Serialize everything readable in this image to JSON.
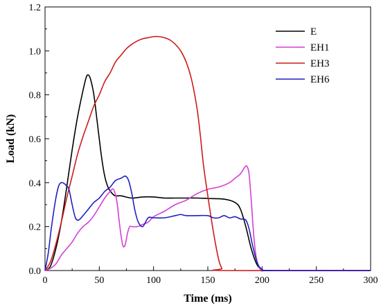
{
  "chart_data": {
    "type": "line",
    "xlabel": "Time (ms)",
    "ylabel": "Load (kN)",
    "xlim": [
      0,
      300
    ],
    "ylim": [
      0,
      1.2
    ],
    "xticks": [
      "0",
      "50",
      "100",
      "150",
      "200",
      "250",
      "300"
    ],
    "yticks": [
      "0.0",
      "0.2",
      "0.4",
      "0.6",
      "0.8",
      "1.0",
      "1.2"
    ],
    "grid": false,
    "legend_position": "top-right",
    "series": [
      {
        "name": "E",
        "color": "#000000",
        "x": [
          0,
          5,
          10,
          15,
          20,
          25,
          30,
          35,
          38,
          40,
          42,
          45,
          48,
          52,
          55,
          58,
          62,
          65,
          70,
          80,
          90,
          100,
          110,
          120,
          130,
          140,
          150,
          165,
          175,
          180,
          185,
          190,
          195,
          200,
          210,
          300
        ],
        "y": [
          0,
          0.02,
          0.1,
          0.22,
          0.38,
          0.55,
          0.7,
          0.82,
          0.88,
          0.89,
          0.87,
          0.8,
          0.68,
          0.52,
          0.43,
          0.38,
          0.35,
          0.34,
          0.34,
          0.33,
          0.335,
          0.335,
          0.33,
          0.33,
          0.33,
          0.33,
          0.328,
          0.325,
          0.31,
          0.28,
          0.2,
          0.1,
          0.03,
          0.005,
          0,
          0
        ]
      },
      {
        "name": "EH1",
        "color": "#d43fd4",
        "x": [
          0,
          5,
          10,
          15,
          20,
          25,
          30,
          35,
          40,
          45,
          50,
          55,
          60,
          63,
          66,
          68,
          70,
          72,
          74,
          76,
          78,
          80,
          85,
          90,
          95,
          100,
          110,
          120,
          130,
          140,
          150,
          160,
          170,
          175,
          180,
          184,
          186,
          188,
          190,
          192,
          194,
          196,
          200,
          210,
          300
        ],
        "y": [
          0,
          0.01,
          0.03,
          0.07,
          0.1,
          0.13,
          0.17,
          0.2,
          0.22,
          0.25,
          0.29,
          0.33,
          0.36,
          0.37,
          0.32,
          0.24,
          0.16,
          0.11,
          0.12,
          0.17,
          0.2,
          0.2,
          0.2,
          0.21,
          0.22,
          0.245,
          0.27,
          0.3,
          0.32,
          0.35,
          0.37,
          0.38,
          0.4,
          0.42,
          0.44,
          0.47,
          0.475,
          0.44,
          0.32,
          0.18,
          0.08,
          0.03,
          0,
          0,
          0
        ]
      },
      {
        "name": "EH3",
        "color": "#cc1a1a",
        "x": [
          0,
          5,
          10,
          15,
          20,
          25,
          30,
          35,
          40,
          45,
          50,
          55,
          60,
          65,
          70,
          75,
          80,
          85,
          90,
          95,
          100,
          105,
          110,
          115,
          120,
          125,
          130,
          135,
          140,
          143,
          146,
          150,
          155,
          160,
          163,
          165,
          300
        ],
        "y": [
          0,
          0.04,
          0.12,
          0.22,
          0.33,
          0.43,
          0.53,
          0.61,
          0.68,
          0.75,
          0.8,
          0.86,
          0.9,
          0.95,
          0.98,
          1.01,
          1.03,
          1.045,
          1.055,
          1.06,
          1.065,
          1.065,
          1.06,
          1.05,
          1.03,
          1.0,
          0.95,
          0.87,
          0.74,
          0.62,
          0.48,
          0.34,
          0.18,
          0.05,
          0.01,
          0,
          0
        ]
      },
      {
        "name": "EH6",
        "color": "#1f1fbf",
        "x": [
          0,
          3,
          6,
          10,
          13,
          16,
          19,
          22,
          25,
          28,
          31,
          35,
          40,
          45,
          50,
          55,
          60,
          65,
          70,
          74,
          77,
          80,
          83,
          86,
          90,
          95,
          100,
          110,
          120,
          125,
          130,
          140,
          150,
          155,
          160,
          165,
          170,
          175,
          180,
          185,
          188,
          191,
          194,
          197,
          200,
          202,
          210,
          300
        ],
        "y": [
          0,
          0.08,
          0.2,
          0.33,
          0.39,
          0.4,
          0.39,
          0.37,
          0.3,
          0.24,
          0.23,
          0.25,
          0.28,
          0.31,
          0.33,
          0.36,
          0.38,
          0.41,
          0.42,
          0.43,
          0.41,
          0.35,
          0.27,
          0.22,
          0.2,
          0.24,
          0.24,
          0.24,
          0.25,
          0.255,
          0.25,
          0.25,
          0.25,
          0.24,
          0.24,
          0.25,
          0.24,
          0.245,
          0.235,
          0.23,
          0.19,
          0.12,
          0.06,
          0.02,
          0.005,
          0,
          0,
          0
        ]
      }
    ]
  }
}
